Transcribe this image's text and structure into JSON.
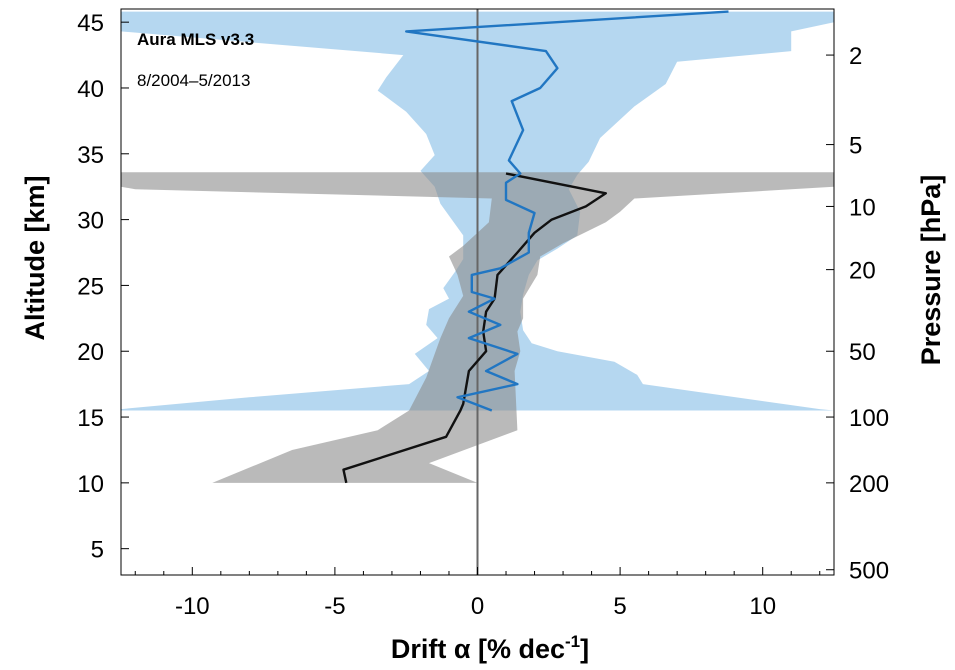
{
  "chart_data": {
    "type": "line",
    "annotation_title": "Aura MLS v3.3",
    "annotation_period": "8/2004–5/2013",
    "xlabel": "Drift α [% dec",
    "xlabel_sup": "-1",
    "xlabel_end": "]",
    "ylabel_left": "Altitude [km]",
    "ylabel_right": "Pressure [hPa]",
    "xlim": [
      -12.5,
      12.5
    ],
    "ylim": [
      3,
      46
    ],
    "x_ticks": [
      -10,
      -5,
      0,
      5,
      10
    ],
    "x_tick_labels": [
      "-10",
      "-5",
      "0",
      "5",
      "10"
    ],
    "y_ticks": [
      5,
      10,
      15,
      20,
      25,
      30,
      35,
      40,
      45
    ],
    "y_tick_labels": [
      "5",
      "10",
      "15",
      "20",
      "25",
      "30",
      "35",
      "40",
      "45"
    ],
    "pressure_ticks": [
      {
        "label": "2",
        "altitude": 42.5
      },
      {
        "label": "5",
        "altitude": 35.7
      },
      {
        "label": "10",
        "altitude": 31.0
      },
      {
        "label": "20",
        "altitude": 26.2
      },
      {
        "label": "50",
        "altitude": 20.0
      },
      {
        "label": "100",
        "altitude": 15.0
      },
      {
        "label": "200",
        "altitude": 10.0
      },
      {
        "label": "500",
        "altitude": 3.4
      }
    ],
    "zero_line": 0,
    "series": [
      {
        "color": "#2176c2",
        "band_color": "#6cb0e2",
        "line": [
          [
            8.8,
            45.8
          ],
          [
            -2.5,
            44.3
          ],
          [
            2.4,
            42.8
          ],
          [
            2.8,
            41.5
          ],
          [
            2.2,
            40.0
          ],
          [
            1.2,
            39.0
          ],
          [
            1.6,
            36.8
          ],
          [
            1.1,
            34.5
          ],
          [
            1.5,
            33.5
          ],
          [
            1.0,
            32.8
          ],
          [
            1.0,
            31.5
          ],
          [
            2.0,
            30.5
          ],
          [
            1.8,
            29.0
          ],
          [
            1.8,
            27.5
          ],
          [
            0.8,
            26.3
          ],
          [
            -0.2,
            25.8
          ],
          [
            -0.2,
            24.5
          ],
          [
            0.6,
            24.0
          ],
          [
            -0.3,
            23.0
          ],
          [
            0.8,
            22.0
          ],
          [
            -0.3,
            21.0
          ],
          [
            1.4,
            19.8
          ],
          [
            0.3,
            18.5
          ],
          [
            1.4,
            17.5
          ],
          [
            -0.7,
            16.5
          ],
          [
            0.5,
            15.5
          ]
        ],
        "band_lower": [
          [
            -12.5,
            45.8
          ],
          [
            -12.5,
            45.0
          ],
          [
            -12.5,
            44.3
          ],
          [
            -2.6,
            42.5
          ],
          [
            -3.2,
            40.8
          ],
          [
            -3.5,
            39.8
          ],
          [
            -2.5,
            38.2
          ],
          [
            -1.8,
            36.5
          ],
          [
            -1.5,
            34.9
          ],
          [
            -2.0,
            33.7
          ],
          [
            -1.5,
            32.5
          ],
          [
            -1.3,
            31.2
          ],
          [
            -0.5,
            28.8
          ],
          [
            -0.5,
            27.0
          ],
          [
            -0.8,
            26.0
          ],
          [
            -1.2,
            24.8
          ],
          [
            -1.0,
            24.0
          ],
          [
            -1.7,
            23.2
          ],
          [
            -1.8,
            22.0
          ],
          [
            -1.4,
            21.0
          ],
          [
            -2.2,
            19.8
          ],
          [
            -1.7,
            18.5
          ],
          [
            -2.4,
            17.5
          ],
          [
            -8.0,
            16.5
          ],
          [
            -12.5,
            15.6
          ],
          [
            -12.5,
            15.5
          ]
        ],
        "band_upper": [
          [
            12.5,
            45.8
          ],
          [
            12.5,
            45.0
          ],
          [
            11.0,
            44.3
          ],
          [
            11.0,
            42.8
          ],
          [
            7.0,
            42.0
          ],
          [
            6.6,
            40.3
          ],
          [
            5.5,
            38.6
          ],
          [
            4.3,
            36.2
          ],
          [
            3.9,
            34.4
          ],
          [
            3.5,
            33.4
          ],
          [
            3.2,
            32.3
          ],
          [
            3.6,
            30.6
          ],
          [
            3.5,
            28.8
          ],
          [
            2.8,
            27.8
          ],
          [
            2.1,
            26.9
          ],
          [
            1.8,
            25.8
          ],
          [
            1.6,
            24.3
          ],
          [
            1.5,
            23.0
          ],
          [
            1.6,
            21.6
          ],
          [
            1.9,
            20.6
          ],
          [
            2.8,
            20.0
          ],
          [
            4.8,
            19.2
          ],
          [
            5.6,
            18.2
          ],
          [
            5.8,
            17.5
          ],
          [
            12.0,
            15.6
          ],
          [
            12.5,
            15.5
          ]
        ]
      },
      {
        "color": "#111111",
        "band_color": "#8c8c8c",
        "line": [
          [
            1.0,
            33.5
          ],
          [
            4.5,
            32.0
          ],
          [
            3.8,
            31.0
          ],
          [
            2.6,
            30.0
          ],
          [
            2.0,
            29.0
          ],
          [
            1.4,
            27.5
          ],
          [
            0.7,
            25.8
          ],
          [
            0.6,
            24.0
          ],
          [
            0.3,
            23.0
          ],
          [
            0.2,
            21.5
          ],
          [
            0.3,
            20.0
          ],
          [
            -0.3,
            18.5
          ],
          [
            -0.5,
            16.0
          ],
          [
            -0.6,
            15.5
          ],
          [
            -1.1,
            13.5
          ],
          [
            -4.7,
            11.0
          ],
          [
            -4.6,
            10.0
          ]
        ],
        "band_upper": [
          [
            12.5,
            33.6
          ],
          [
            12.5,
            32.5
          ],
          [
            11.0,
            32.3
          ],
          [
            5.5,
            31.6
          ],
          [
            5.0,
            30.6
          ],
          [
            4.5,
            29.8
          ],
          [
            3.0,
            28.2
          ],
          [
            2.2,
            27.2
          ],
          [
            2.1,
            25.8
          ],
          [
            1.6,
            24.0
          ],
          [
            1.6,
            22.5
          ],
          [
            1.4,
            21.5
          ],
          [
            1.5,
            20.0
          ],
          [
            1.3,
            18.5
          ],
          [
            1.4,
            14.0
          ],
          [
            -1.7,
            11.5
          ],
          [
            0.0,
            10.0
          ]
        ],
        "band_lower": [
          [
            -12.5,
            33.6
          ],
          [
            -12.5,
            32.5
          ],
          [
            -12.0,
            32.3
          ],
          [
            0.5,
            31.6
          ],
          [
            0.4,
            29.8
          ],
          [
            -0.5,
            28.0
          ],
          [
            -1.0,
            27.2
          ],
          [
            -0.7,
            25.8
          ],
          [
            -0.5,
            24.2
          ],
          [
            -1.0,
            22.5
          ],
          [
            -1.3,
            21.0
          ],
          [
            -1.5,
            19.8
          ],
          [
            -1.8,
            18.0
          ],
          [
            -2.4,
            15.5
          ],
          [
            -3.5,
            14.0
          ],
          [
            -6.5,
            12.5
          ],
          [
            -9.3,
            10.0
          ]
        ]
      }
    ]
  }
}
